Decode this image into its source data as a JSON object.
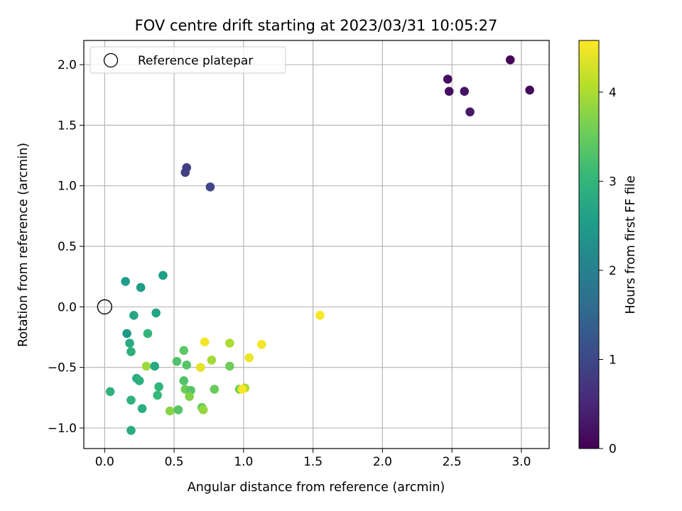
{
  "chart_data": {
    "type": "scatter",
    "title": "FOV centre drift starting at 2023/03/31 10:05:27",
    "xlabel": "Angular distance from reference (arcmin)",
    "ylabel": "Rotation from reference (arcmin)",
    "xlim": [
      -0.15,
      3.2
    ],
    "ylim": [
      -1.17,
      2.2
    ],
    "xticks": [
      0.0,
      0.5,
      1.0,
      1.5,
      2.0,
      2.5,
      3.0
    ],
    "xtick_labels": [
      "0.0",
      "0.5",
      "1.0",
      "1.5",
      "2.0",
      "2.5",
      "3.0"
    ],
    "yticks": [
      -1.0,
      -0.5,
      0.0,
      0.5,
      1.0,
      1.5,
      2.0
    ],
    "ytick_labels": [
      "−1.0",
      "−0.5",
      "0.0",
      "0.5",
      "1.0",
      "1.5",
      "2.0"
    ],
    "grid": true,
    "legend": {
      "placement": "top-left",
      "entries": [
        "Reference platepar"
      ]
    },
    "reference_point": {
      "x": 0.0,
      "y": 0.0
    },
    "colormap": "viridis",
    "colorbar": {
      "label": "Hours from first FF file",
      "min": 0,
      "max": 4.58,
      "ticks": [
        0,
        1,
        2,
        3,
        4
      ],
      "tick_labels": [
        "0",
        "1",
        "2",
        "3",
        "4"
      ]
    },
    "points": [
      {
        "x": 2.92,
        "y": 2.04,
        "c": 0.05
      },
      {
        "x": 3.06,
        "y": 1.79,
        "c": 0.1
      },
      {
        "x": 2.47,
        "y": 1.88,
        "c": 0.15
      },
      {
        "x": 2.48,
        "y": 1.78,
        "c": 0.2
      },
      {
        "x": 2.59,
        "y": 1.78,
        "c": 0.25
      },
      {
        "x": 2.63,
        "y": 1.61,
        "c": 0.3
      },
      {
        "x": 0.59,
        "y": 1.15,
        "c": 0.85
      },
      {
        "x": 0.58,
        "y": 1.11,
        "c": 0.9
      },
      {
        "x": 0.76,
        "y": 0.99,
        "c": 0.95
      },
      {
        "x": 0.42,
        "y": 0.26,
        "c": 2.6
      },
      {
        "x": 0.15,
        "y": 0.21,
        "c": 2.55
      },
      {
        "x": 0.26,
        "y": 0.16,
        "c": 2.5
      },
      {
        "x": 0.21,
        "y": -0.07,
        "c": 2.7
      },
      {
        "x": 0.37,
        "y": -0.05,
        "c": 2.65
      },
      {
        "x": 0.16,
        "y": -0.22,
        "c": 2.45
      },
      {
        "x": 0.31,
        "y": -0.22,
        "c": 3.0
      },
      {
        "x": 0.18,
        "y": -0.3,
        "c": 2.8
      },
      {
        "x": 0.19,
        "y": -0.37,
        "c": 2.9
      },
      {
        "x": 0.3,
        "y": -0.49,
        "c": 3.9
      },
      {
        "x": 0.36,
        "y": -0.49,
        "c": 2.75
      },
      {
        "x": 0.23,
        "y": -0.59,
        "c": 2.85
      },
      {
        "x": 0.25,
        "y": -0.61,
        "c": 2.9
      },
      {
        "x": 0.04,
        "y": -0.7,
        "c": 2.95
      },
      {
        "x": 0.39,
        "y": -0.66,
        "c": 3.0
      },
      {
        "x": 0.38,
        "y": -0.73,
        "c": 3.05
      },
      {
        "x": 0.19,
        "y": -0.77,
        "c": 2.95
      },
      {
        "x": 0.27,
        "y": -0.84,
        "c": 2.85
      },
      {
        "x": 0.19,
        "y": -1.02,
        "c": 2.8
      },
      {
        "x": 0.47,
        "y": -0.86,
        "c": 3.75
      },
      {
        "x": 0.53,
        "y": -0.85,
        "c": 3.35
      },
      {
        "x": 0.52,
        "y": -0.45,
        "c": 3.3
      },
      {
        "x": 0.57,
        "y": -0.36,
        "c": 3.4
      },
      {
        "x": 0.59,
        "y": -0.48,
        "c": 3.35
      },
      {
        "x": 0.57,
        "y": -0.61,
        "c": 3.3
      },
      {
        "x": 0.58,
        "y": -0.68,
        "c": 3.55
      },
      {
        "x": 0.62,
        "y": -0.69,
        "c": 3.35
      },
      {
        "x": 0.61,
        "y": -0.74,
        "c": 3.7
      },
      {
        "x": 0.7,
        "y": -0.83,
        "c": 3.5
      },
      {
        "x": 0.71,
        "y": -0.85,
        "c": 3.85
      },
      {
        "x": 0.69,
        "y": -0.5,
        "c": 4.4
      },
      {
        "x": 0.72,
        "y": -0.29,
        "c": 4.5
      },
      {
        "x": 0.77,
        "y": -0.44,
        "c": 3.95
      },
      {
        "x": 0.79,
        "y": -0.68,
        "c": 3.5
      },
      {
        "x": 0.9,
        "y": -0.3,
        "c": 4.0
      },
      {
        "x": 0.9,
        "y": -0.49,
        "c": 3.55
      },
      {
        "x": 0.97,
        "y": -0.68,
        "c": 3.6
      },
      {
        "x": 1.01,
        "y": -0.67,
        "c": 4.0
      },
      {
        "x": 0.99,
        "y": -0.68,
        "c": 4.55
      },
      {
        "x": 1.04,
        "y": -0.42,
        "c": 4.45
      },
      {
        "x": 1.13,
        "y": -0.31,
        "c": 4.5
      },
      {
        "x": 1.55,
        "y": -0.07,
        "c": 4.55
      }
    ]
  }
}
